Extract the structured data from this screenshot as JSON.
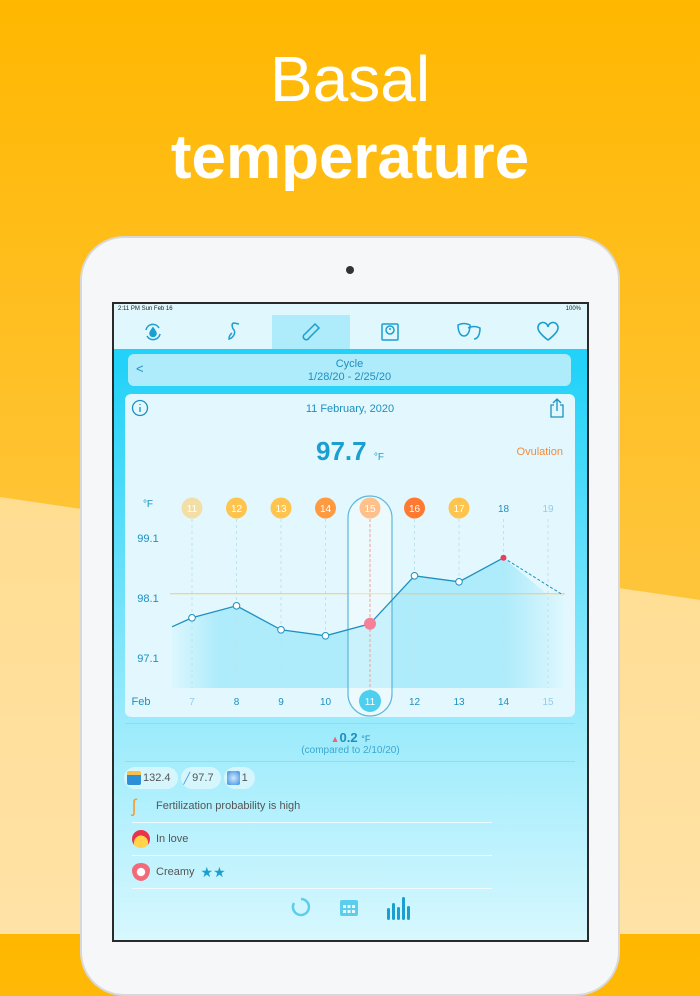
{
  "hero": {
    "line1": "Basal",
    "line2": "temperature"
  },
  "status": {
    "time": "2:11 PM  Sun Feb 16",
    "battery": "100%"
  },
  "tabs": [
    {
      "icon": "cycle-drop-icon"
    },
    {
      "icon": "stork-icon"
    },
    {
      "icon": "thermometer-icon",
      "active": true
    },
    {
      "icon": "scale-icon"
    },
    {
      "icon": "mood-masks-icon"
    },
    {
      "icon": "heart-icon"
    }
  ],
  "cycle": {
    "title": "Cycle",
    "range": "1/28/20 - 2/25/20",
    "back": "<"
  },
  "card": {
    "date": "11 February, 2020",
    "temp": "97.7",
    "unit": "°F",
    "phase": "Ovulation"
  },
  "chart_data": {
    "type": "line",
    "ylabel": "°F",
    "yticks": [
      "99.1",
      "98.1",
      "97.1"
    ],
    "ylim": [
      96.7,
      99.6
    ],
    "month": "Feb",
    "x": [
      "7",
      "8",
      "9",
      "10",
      "11",
      "12",
      "13",
      "14",
      "15"
    ],
    "cycle_days": [
      "11",
      "12",
      "13",
      "14",
      "15",
      "16",
      "17",
      "18",
      "19"
    ],
    "cycle_day_colors": [
      "#F3DFA6",
      "#FFC44D",
      "#FFC44D",
      "#FF9A40",
      "#FFC08A",
      "#FF7A30",
      "#FFC44D",
      null,
      null
    ],
    "values": [
      97.77,
      97.97,
      97.57,
      97.47,
      97.67,
      98.47,
      98.37,
      98.77,
      98.15
    ],
    "coverline": 98.17,
    "selected": "11",
    "highlight_color": "#F4809A",
    "line_color": "#1E90BE"
  },
  "delta": {
    "value": "0.2",
    "unit": "°F",
    "compare": "(compared to 2/10/20)"
  },
  "pills": [
    {
      "icon": "scale-icon",
      "value": "132.4"
    },
    {
      "icon": "thermometer-icon",
      "value": "97.7"
    },
    {
      "icon": "test-strip-icon",
      "value": "1"
    }
  ],
  "notes": [
    {
      "icon": "stork-icon",
      "text": "Fertilization probability is high"
    },
    {
      "icon": "ladybug-face-icon",
      "text": "In love"
    },
    {
      "icon": "discharge-drop-icon",
      "text": "Creamy",
      "stars": "★★"
    }
  ],
  "bottom_nav": [
    {
      "icon": "cycle-ring-icon"
    },
    {
      "icon": "calendar-icon"
    },
    {
      "icon": "bar-chart-icon",
      "active": true
    }
  ]
}
